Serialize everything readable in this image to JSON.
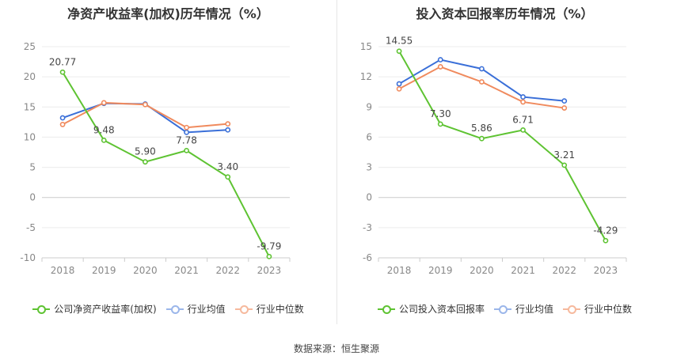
{
  "chart_data": [
    {
      "type": "line",
      "title": "净资产收益率(加权)历年情况（%）",
      "categories": [
        "2018",
        "2019",
        "2020",
        "2021",
        "2022",
        "2023"
      ],
      "ylim": [
        -10,
        25
      ],
      "yticks": [
        25,
        20,
        15,
        10,
        5,
        0,
        -5,
        -10
      ],
      "grid": true,
      "legend_position": "bottom",
      "series": [
        {
          "name": "公司净资产收益率(加权)",
          "color": "#5ec332",
          "values": [
            20.77,
            9.48,
            5.9,
            7.78,
            3.4,
            -9.79
          ],
          "labels": [
            "20.77",
            "9.48",
            "5.90",
            "7.78",
            "3.40",
            "-9.79"
          ]
        },
        {
          "name": "行业均值",
          "color": "#3a6fd8",
          "values": [
            13.2,
            15.6,
            15.5,
            10.8,
            11.2,
            null
          ],
          "labels": []
        },
        {
          "name": "行业中位数",
          "color": "#f08a5d",
          "values": [
            12.1,
            15.7,
            15.4,
            11.6,
            12.2,
            null
          ],
          "labels": []
        }
      ]
    },
    {
      "type": "line",
      "title": "投入资本回报率历年情况（%）",
      "categories": [
        "2018",
        "2019",
        "2020",
        "2021",
        "2022",
        "2023"
      ],
      "ylim": [
        -6,
        15
      ],
      "yticks": [
        15,
        12,
        9,
        6,
        3,
        0,
        -3,
        -6
      ],
      "grid": true,
      "legend_position": "bottom",
      "series": [
        {
          "name": "公司投入资本回报率",
          "color": "#5ec332",
          "values": [
            14.55,
            7.3,
            5.86,
            6.71,
            3.21,
            -4.29
          ],
          "labels": [
            "14.55",
            "7.30",
            "5.86",
            "6.71",
            "3.21",
            "-4.29"
          ]
        },
        {
          "name": "行业均值",
          "color": "#3a6fd8",
          "values": [
            11.3,
            13.7,
            12.8,
            10.0,
            9.6,
            null
          ],
          "labels": []
        },
        {
          "name": "行业中位数",
          "color": "#f08a5d",
          "values": [
            10.8,
            13.0,
            11.5,
            9.5,
            8.9,
            null
          ],
          "labels": []
        }
      ]
    }
  ],
  "footer": {
    "source": "数据来源：恒生聚源"
  }
}
